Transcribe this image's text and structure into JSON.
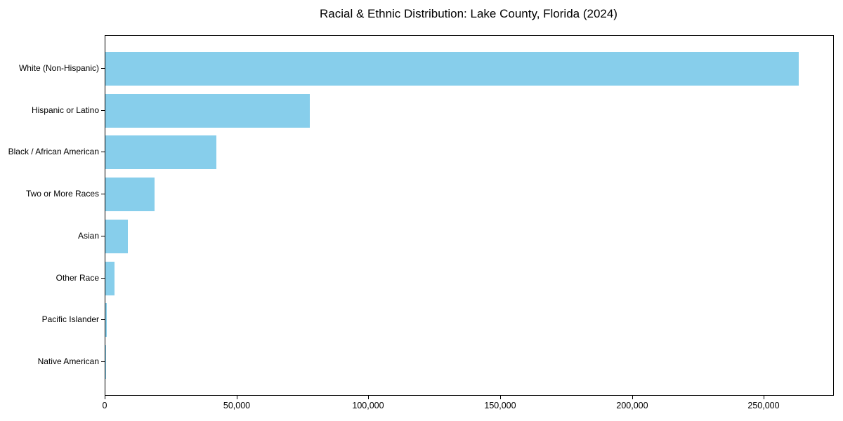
{
  "title": "Racial & Ethnic Distribution: Lake County, Florida (2024)",
  "colors": {
    "bar": "#87CEEB",
    "axis": "#000000",
    "text": "#000000",
    "background": "#ffffff"
  },
  "chart_data": {
    "type": "bar",
    "orientation": "horizontal",
    "title": "Racial & Ethnic Distribution: Lake County, Florida (2024)",
    "categories": [
      "White (Non-Hispanic)",
      "Hispanic or Latino",
      "Black / African American",
      "Two or More Races",
      "Asian",
      "Other Race",
      "Pacific Islander",
      "Native American"
    ],
    "values": [
      263000,
      77500,
      42000,
      18600,
      8500,
      3500,
      450,
      300
    ],
    "bar_color": "#87CEEB",
    "xlabel": "",
    "ylabel": "",
    "xlim": [
      0,
      276000
    ],
    "x_ticks": [
      0,
      50000,
      100000,
      150000,
      200000,
      250000
    ],
    "x_tick_labels": [
      "0",
      "50,000",
      "100,000",
      "150,000",
      "200,000",
      "250,000"
    ],
    "grid": false,
    "legend": null,
    "sort": "descending",
    "category_axis": "y",
    "value_axis": "x"
  }
}
